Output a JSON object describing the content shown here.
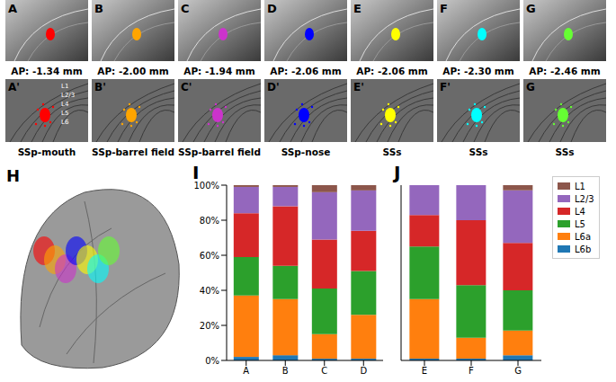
{
  "figure": {
    "top_row": [
      {
        "label": "A",
        "caption": "AP: -1.34 mm",
        "color": "#ff0000"
      },
      {
        "label": "B",
        "caption": "AP: -2.00 mm",
        "color": "#ffa500"
      },
      {
        "label": "C",
        "caption": "AP: -1.94 mm",
        "color": "#cc33cc"
      },
      {
        "label": "D",
        "caption": "AP: -2.06 mm",
        "color": "#0000ff"
      },
      {
        "label": "E",
        "caption": "AP: -2.06 mm",
        "color": "#ffff00"
      },
      {
        "label": "F",
        "caption": "AP: -2.30 mm",
        "color": "#00ffff"
      },
      {
        "label": "G",
        "caption": "AP: -2.46 mm",
        "color": "#66ff33"
      }
    ],
    "bottom_row": [
      {
        "label": "A'",
        "caption": "SSp-mouth",
        "color": "#ff0000"
      },
      {
        "label": "B'",
        "caption": "SSp-barrel field",
        "color": "#ffa500"
      },
      {
        "label": "C'",
        "caption": "SSp-barrel field",
        "color": "#cc33cc"
      },
      {
        "label": "D'",
        "caption": "SSp-nose",
        "color": "#0000ff"
      },
      {
        "label": "E'",
        "caption": "SSs",
        "color": "#ffff00"
      },
      {
        "label": "F'",
        "caption": "SSs",
        "color": "#00ffff"
      },
      {
        "label": "G",
        "caption": "SSs",
        "color": "#66ff33"
      }
    ],
    "layers": [
      "L1",
      "L2/3",
      "L4",
      "L5",
      "L6"
    ],
    "atlas_panel": {
      "label": "H"
    }
  },
  "chart_data": [
    {
      "type": "bar",
      "title": "I",
      "categories": [
        "A",
        "B",
        "C",
        "D"
      ],
      "stacked": true,
      "ylim": [
        0,
        100
      ],
      "yticks": [
        {
          "value": 0,
          "label": "0%"
        },
        {
          "value": 20,
          "label": "20%"
        },
        {
          "value": 40,
          "label": "40%"
        },
        {
          "value": 60,
          "label": "60%"
        },
        {
          "value": 80,
          "label": "80%"
        },
        {
          "value": 100,
          "label": "100%"
        }
      ],
      "series": [
        {
          "name": "L6b",
          "color": "#1f77b4",
          "values": [
            2,
            3,
            1,
            1
          ]
        },
        {
          "name": "L6a",
          "color": "#ff7f0e",
          "values": [
            35,
            32,
            14,
            25
          ]
        },
        {
          "name": "L5",
          "color": "#2ca02c",
          "values": [
            22,
            19,
            26,
            25
          ]
        },
        {
          "name": "L4",
          "color": "#d62728",
          "values": [
            25,
            34,
            28,
            23
          ]
        },
        {
          "name": "L2/3",
          "color": "#9467bd",
          "values": [
            15,
            11,
            27,
            23
          ]
        },
        {
          "name": "L1",
          "color": "#8c564b",
          "values": [
            1,
            1,
            4,
            3
          ]
        }
      ]
    },
    {
      "type": "bar",
      "title": "J",
      "categories": [
        "E",
        "F",
        "G"
      ],
      "stacked": true,
      "tick_labels": "x",
      "legend": "right",
      "ylim": [
        0,
        100
      ],
      "yticks": [
        0,
        20,
        40,
        60,
        80,
        100
      ],
      "series": [
        {
          "name": "L6b",
          "color": "#1f77b4",
          "values": [
            1,
            1,
            3
          ]
        },
        {
          "name": "L6a",
          "color": "#ff7f0e",
          "values": [
            34,
            12,
            14
          ]
        },
        {
          "name": "L5",
          "color": "#2ca02c",
          "values": [
            30,
            30,
            23
          ]
        },
        {
          "name": "L4",
          "color": "#d62728",
          "values": [
            18,
            37,
            27
          ]
        },
        {
          "name": "L2/3",
          "color": "#9467bd",
          "values": [
            17,
            20,
            30
          ]
        },
        {
          "name": "L1",
          "color": "#8c564b",
          "values": [
            0,
            0,
            3
          ]
        }
      ]
    }
  ]
}
